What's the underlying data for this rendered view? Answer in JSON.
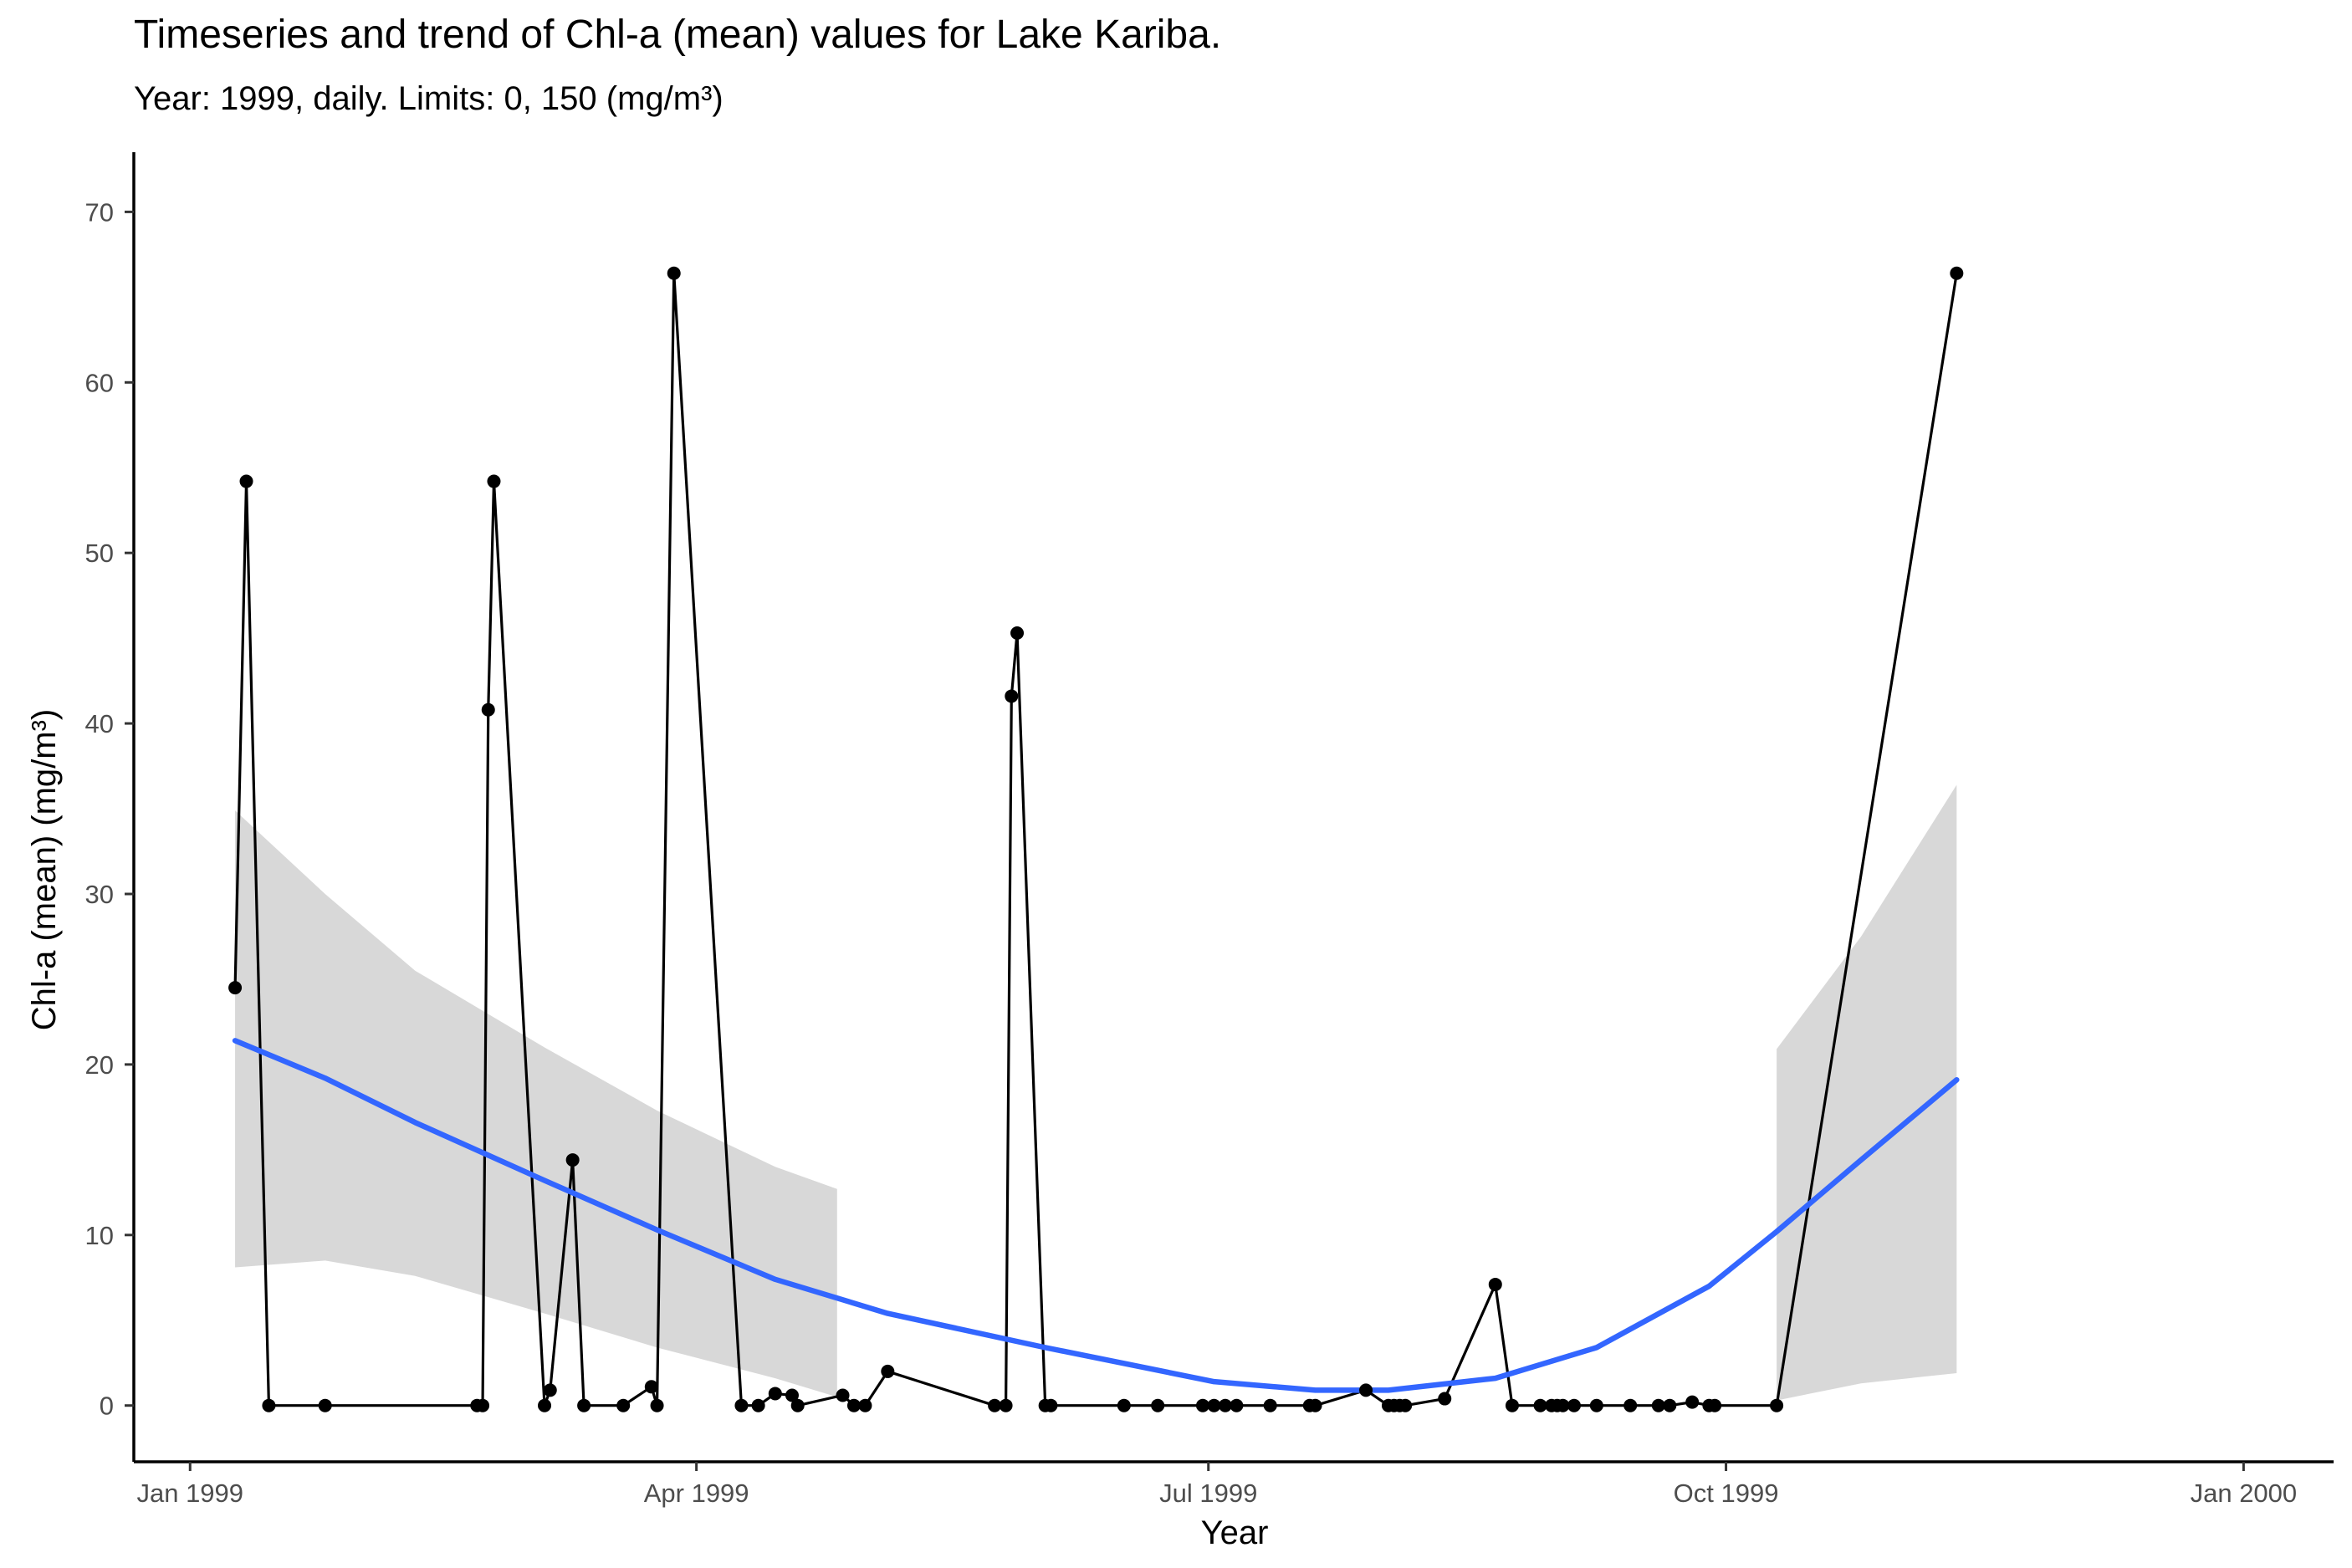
{
  "chart_data": {
    "type": "line",
    "title": "Timeseries and trend of Chl-a (mean) values for Lake Kariba.",
    "subtitle": "Year: 1999, daily. Limits: 0, 150 (mg/m³)",
    "xlabel": "Year",
    "ylabel": "Chl-a (mean) (mg/m³)",
    "x_tick_labels": [
      "Jan 1999",
      "Apr 1999",
      "Jul 1999",
      "Oct 1999",
      "Jan 2000"
    ],
    "x_tick_dates": [
      "1999-01-01",
      "1999-04-01",
      "1999-07-01",
      "1999-10-01",
      "2000-01-01"
    ],
    "y_ticks": [
      0,
      10,
      20,
      30,
      40,
      50,
      60,
      70
    ],
    "xlim": [
      "1998-12-22",
      "2000-01-17"
    ],
    "ylim": [
      -3.3,
      73.5
    ],
    "grid": false,
    "colors": {
      "points": "#000000",
      "line": "#000000",
      "trend": "#3366FF",
      "ribbon": "#BEBEBE"
    },
    "series": [
      {
        "type": "line+points",
        "points": [
          [
            "1999-01-09",
            24.5
          ],
          [
            "1999-01-11",
            54.2
          ],
          [
            "1999-01-15",
            0
          ],
          [
            "1999-01-25",
            0
          ],
          [
            "1999-02-21",
            0
          ],
          [
            "1999-02-22",
            0
          ],
          [
            "1999-02-23",
            40.8
          ],
          [
            "1999-02-24",
            54.2
          ],
          [
            "1999-03-05",
            0
          ],
          [
            "1999-03-06",
            0.9
          ],
          [
            "1999-03-10",
            14.4
          ],
          [
            "1999-03-12",
            0
          ],
          [
            "1999-03-19",
            0
          ],
          [
            "1999-03-24",
            1.1
          ],
          [
            "1999-03-25",
            0
          ],
          [
            "1999-03-28",
            66.4
          ],
          [
            "1999-04-09",
            0
          ],
          [
            "1999-04-12",
            0
          ],
          [
            "1999-04-15",
            0.7
          ],
          [
            "1999-04-18",
            0.6
          ],
          [
            "1999-04-19",
            0
          ],
          [
            "1999-04-27",
            0.6
          ],
          [
            "1999-04-29",
            0
          ],
          [
            "1999-05-01",
            0
          ],
          [
            "1999-05-05",
            2.0
          ],
          [
            "1999-05-24",
            0
          ],
          [
            "1999-05-26",
            0
          ],
          [
            "1999-05-27",
            41.6
          ],
          [
            "1999-05-28",
            45.3
          ],
          [
            "1999-06-02",
            0
          ],
          [
            "1999-06-03",
            0
          ],
          [
            "1999-06-16",
            0
          ],
          [
            "1999-06-22",
            0
          ],
          [
            "1999-06-30",
            0
          ],
          [
            "1999-07-02",
            0
          ],
          [
            "1999-07-04",
            0
          ],
          [
            "1999-07-06",
            0
          ],
          [
            "1999-07-12",
            0
          ],
          [
            "1999-07-19",
            0
          ],
          [
            "1999-07-20",
            0
          ],
          [
            "1999-07-29",
            0.9
          ],
          [
            "1999-08-02",
            0
          ],
          [
            "1999-08-03",
            0
          ],
          [
            "1999-08-04",
            0
          ],
          [
            "1999-08-05",
            0
          ],
          [
            "1999-08-12",
            0.4
          ],
          [
            "1999-08-21",
            7.1
          ],
          [
            "1999-08-24",
            0
          ],
          [
            "1999-08-29",
            0
          ],
          [
            "1999-08-31",
            0
          ],
          [
            "1999-09-01",
            0
          ],
          [
            "1999-09-02",
            0
          ],
          [
            "1999-09-04",
            0
          ],
          [
            "1999-09-08",
            0
          ],
          [
            "1999-09-14",
            0
          ],
          [
            "1999-09-19",
            0
          ],
          [
            "1999-09-21",
            0
          ],
          [
            "1999-09-25",
            0.2
          ],
          [
            "1999-09-28",
            0
          ],
          [
            "1999-09-29",
            0
          ],
          [
            "1999-10-10",
            0
          ],
          [
            "1999-11-11",
            66.4
          ]
        ]
      },
      {
        "type": "trend",
        "points": [
          [
            "1999-01-09",
            21.4
          ],
          [
            "1999-01-25",
            19.2
          ],
          [
            "1999-02-10",
            16.6
          ],
          [
            "1999-03-05",
            13.2
          ],
          [
            "1999-03-25",
            10.3
          ],
          [
            "1999-04-15",
            7.4
          ],
          [
            "1999-05-05",
            5.4
          ],
          [
            "1999-06-02",
            3.4
          ],
          [
            "1999-07-02",
            1.4
          ],
          [
            "1999-07-20",
            0.9
          ],
          [
            "1999-08-02",
            0.9
          ],
          [
            "1999-08-21",
            1.6
          ],
          [
            "1999-09-08",
            3.4
          ],
          [
            "1999-09-28",
            7.0
          ],
          [
            "1999-10-10",
            10.2
          ],
          [
            "1999-10-25",
            14.4
          ],
          [
            "1999-11-11",
            19.1
          ]
        ]
      }
    ],
    "confidence_band": [
      {
        "lower": [
          [
            "1999-01-09",
            8.1
          ],
          [
            "1999-01-25",
            8.5
          ],
          [
            "1999-02-10",
            7.6
          ],
          [
            "1999-03-05",
            5.4
          ],
          [
            "1999-03-25",
            3.4
          ],
          [
            "1999-04-15",
            1.6
          ],
          [
            "1999-04-26",
            0.5
          ]
        ],
        "upper": [
          [
            "1999-01-09",
            34.9
          ],
          [
            "1999-01-25",
            30.0
          ],
          [
            "1999-02-10",
            25.5
          ],
          [
            "1999-03-05",
            21.0
          ],
          [
            "1999-03-25",
            17.3
          ],
          [
            "1999-04-15",
            14.0
          ],
          [
            "1999-04-26",
            12.7
          ]
        ]
      },
      {
        "lower": [
          [
            "1999-10-10",
            0.3
          ],
          [
            "1999-10-25",
            1.3
          ],
          [
            "1999-11-11",
            1.9
          ]
        ],
        "upper": [
          [
            "1999-10-10",
            20.9
          ],
          [
            "1999-10-25",
            27.5
          ],
          [
            "1999-11-11",
            36.4
          ]
        ]
      }
    ]
  }
}
